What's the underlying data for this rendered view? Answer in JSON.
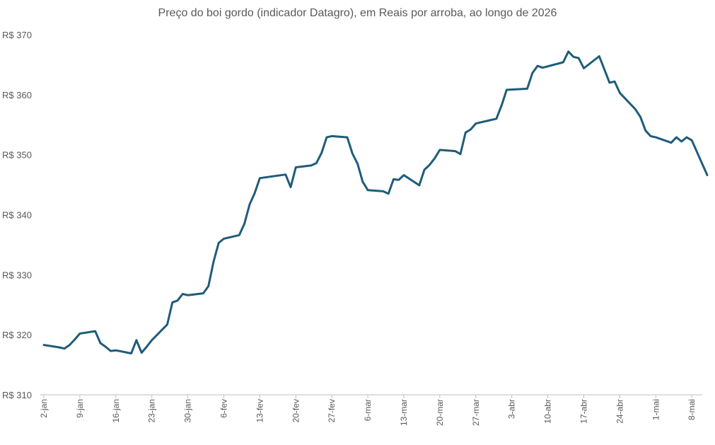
{
  "chart_data": {
    "type": "line",
    "title": "Preço do boi gordo (indicador Datagro), em Reais por arroba, ao longo de 2026",
    "xlabel": "",
    "ylabel": "",
    "ylim": [
      310,
      370
    ],
    "y_tick_values": [
      310,
      320,
      330,
      340,
      350,
      360,
      370
    ],
    "y_tick_labels": [
      "R$ 310",
      "R$ 320",
      "R$ 330",
      "R$ 340",
      "R$ 350",
      "R$ 360",
      "R$ 370"
    ],
    "x_tick_labels": [
      "2-jan",
      "9-jan",
      "16-jan",
      "23-jan",
      "30-jan",
      "6-fev",
      "13-fev",
      "20-fev",
      "27-fev",
      "6-mar",
      "13-mar",
      "20-mar",
      "27-mar",
      "3-abr",
      "10-abr",
      "17-abr",
      "24-abr",
      "1-mai",
      "8-mai"
    ],
    "grid": false,
    "legend": "none",
    "line_color": "#1f5c7a",
    "series": [
      {
        "x": [
          "2-jan",
          "5-jan",
          "6-jan",
          "7-jan",
          "8-jan",
          "9-jan",
          "12-jan",
          "13-jan",
          "14-jan",
          "15-jan",
          "16-jan",
          "19-jan",
          "20-jan",
          "21-jan",
          "22-jan",
          "23-jan",
          "26-jan",
          "27-jan",
          "28-jan",
          "29-jan",
          "30-jan",
          "2-fev",
          "3-fev",
          "4-fev",
          "5-fev",
          "6-fev",
          "9-fev",
          "10-fev",
          "11-fev",
          "12-fev",
          "13-fev",
          "18-fev",
          "19-fev",
          "20-fev",
          "23-fev",
          "24-fev",
          "25-fev",
          "26-fev",
          "27-fev",
          "2-mar",
          "3-mar",
          "4-mar",
          "5-mar",
          "6-mar",
          "9-mar",
          "10-mar",
          "11-mar",
          "12-mar",
          "13-mar",
          "16-mar",
          "17-mar",
          "18-mar",
          "19-mar",
          "20-mar",
          "23-mar",
          "24-mar",
          "25-mar",
          "26-mar",
          "27-mar",
          "30-mar",
          "31-mar",
          "1-abr",
          "2-abr",
          "6-abr",
          "7-abr",
          "8-abr",
          "9-abr",
          "13-abr",
          "14-abr",
          "15-abr",
          "16-abr",
          "17-abr",
          "20-abr",
          "22-abr",
          "23-abr",
          "24-abr",
          "27-abr",
          "28-abr",
          "29-abr",
          "30-abr",
          "1-mai",
          "4-mai",
          "5-mai",
          "6-mai",
          "7-mai",
          "8-mai",
          "11-mai"
        ],
        "y": [
          318.3,
          317.9,
          317.7,
          318.3,
          319.2,
          320.2,
          320.6,
          318.6,
          318.0,
          317.3,
          317.4,
          316.9,
          319.1,
          317.0,
          318.0,
          319.1,
          321.7,
          325.4,
          325.7,
          326.8,
          326.6,
          326.9,
          328.1,
          332.2,
          335.3,
          336.0,
          336.6,
          338.5,
          341.7,
          343.6,
          346.1,
          346.7,
          344.6,
          347.9,
          348.2,
          348.6,
          350.3,
          352.9,
          353.1,
          352.9,
          350.2,
          348.5,
          345.5,
          344.1,
          343.9,
          343.5,
          345.9,
          345.8,
          346.6,
          344.9,
          347.5,
          348.3,
          349.4,
          350.8,
          350.6,
          350.1,
          353.7,
          354.2,
          355.2,
          355.8,
          356.0,
          358.2,
          360.8,
          361.0,
          363.6,
          364.8,
          364.5,
          365.4,
          367.2,
          366.3,
          366.1,
          364.4,
          366.4,
          362.0,
          362.2,
          360.3,
          357.6,
          356.3,
          354.0,
          353.1,
          352.9,
          352.0,
          352.9,
          352.2,
          352.9,
          352.4,
          346.6
        ]
      }
    ]
  }
}
